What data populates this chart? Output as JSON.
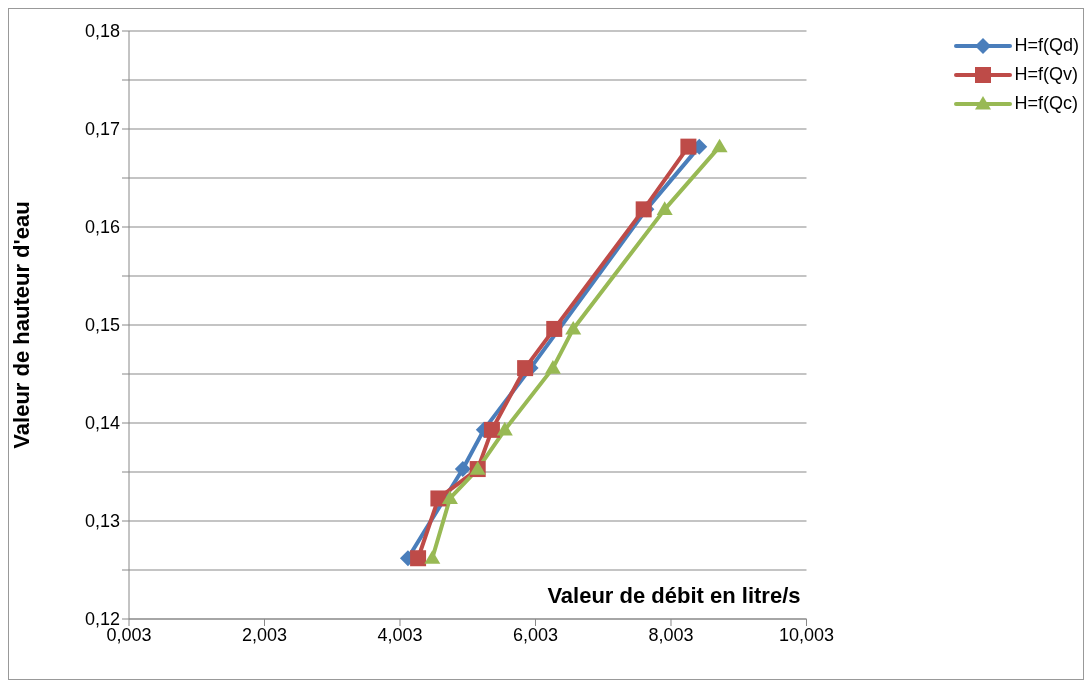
{
  "chart_data": {
    "type": "line",
    "xlabel": "Valeur de débit en litre/s",
    "ylabel": "Valeur de hauteur d'eau",
    "xlim": [
      0.003,
      10.003
    ],
    "xticks": [
      {
        "value": 0.003,
        "label": "0,003"
      },
      {
        "value": 2.003,
        "label": "2,003"
      },
      {
        "value": 4.003,
        "label": "4,003"
      },
      {
        "value": 6.003,
        "label": "6,003"
      },
      {
        "value": 8.003,
        "label": "8,003"
      },
      {
        "value": 10.003,
        "label": "10,003"
      }
    ],
    "ylim": [
      0.12,
      0.18
    ],
    "yticks": [
      {
        "value": 0.12,
        "label": "0,12"
      },
      {
        "value": 0.125,
        "label": null
      },
      {
        "value": 0.13,
        "label": "0,13"
      },
      {
        "value": 0.135,
        "label": null
      },
      {
        "value": 0.14,
        "label": "0,14"
      },
      {
        "value": 0.145,
        "label": null
      },
      {
        "value": 0.15,
        "label": "0,15"
      },
      {
        "value": 0.155,
        "label": null
      },
      {
        "value": 0.16,
        "label": "0,16"
      },
      {
        "value": 0.165,
        "label": null
      },
      {
        "value": 0.17,
        "label": "0,17"
      },
      {
        "value": 0.175,
        "label": null
      },
      {
        "value": 0.18,
        "label": "0,18"
      }
    ],
    "grid": "y",
    "legend": "top right",
    "series": [
      {
        "name": "H=f(Qd)",
        "color": "#4a7ebb",
        "marker": "diamond",
        "x": [
          4.12,
          4.5,
          4.93,
          5.24,
          5.93,
          6.27,
          7.64,
          8.42
        ],
        "values": [
          0.1262,
          null,
          0.1353,
          0.1393,
          0.1456,
          null,
          0.1618,
          0.1682
        ]
      },
      {
        "name": "H=f(Qv)",
        "color": "#be4b48",
        "marker": "square",
        "x": [
          4.27,
          4.57,
          5.15,
          5.36,
          5.85,
          6.28,
          7.6,
          8.26
        ],
        "values": [
          0.1262,
          0.1323,
          0.1353,
          0.1393,
          0.1456,
          0.1496,
          0.1618,
          0.1682
        ]
      },
      {
        "name": "H=f(Qc)",
        "color": "#98b954",
        "marker": "triangle",
        "x": [
          4.48,
          4.74,
          5.15,
          5.55,
          6.26,
          6.56,
          7.91,
          8.72
        ],
        "values": [
          0.1262,
          0.1323,
          0.1353,
          0.1393,
          0.1456,
          0.1496,
          0.1618,
          0.1682
        ]
      }
    ]
  }
}
